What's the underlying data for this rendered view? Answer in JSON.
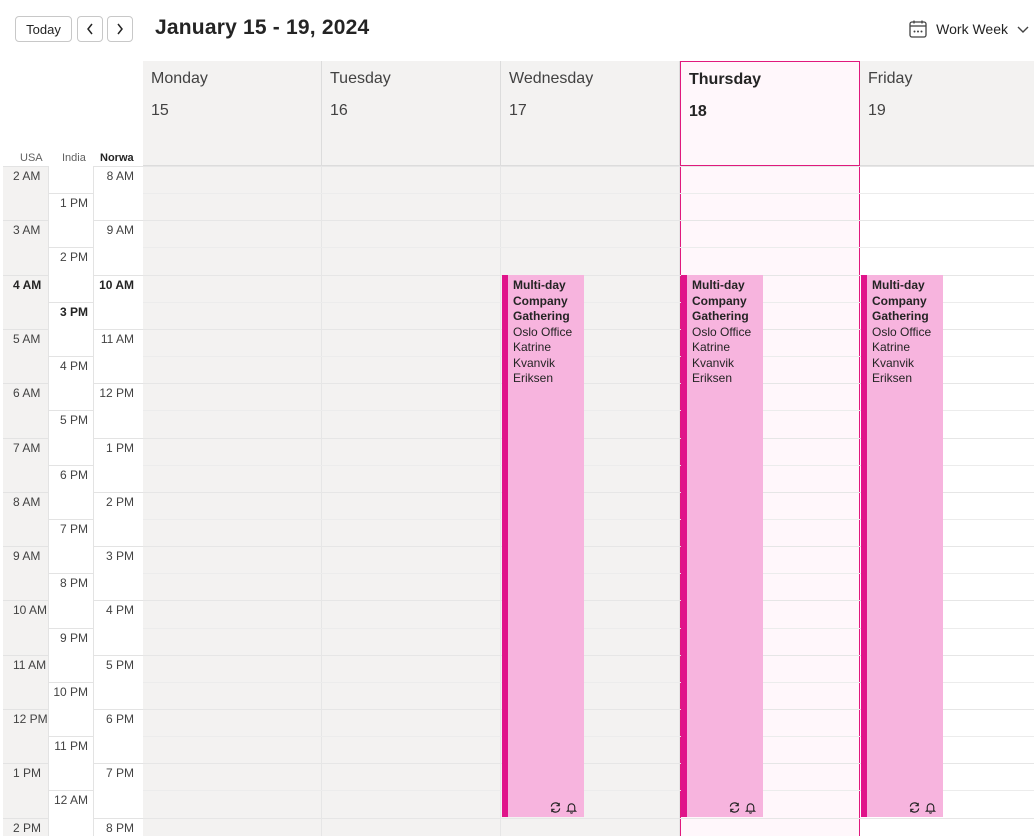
{
  "toolbar": {
    "today_label": "Today",
    "date_range": "January 15 - 19, 2024",
    "view_label": "Work Week"
  },
  "timezones": {
    "usa": "USA",
    "india": "India",
    "norway": "Norwa"
  },
  "days": [
    {
      "name": "Monday",
      "number": "15"
    },
    {
      "name": "Tuesday",
      "number": "16"
    },
    {
      "name": "Wednesday",
      "number": "17"
    },
    {
      "name": "Thursday",
      "number": "18"
    },
    {
      "name": "Friday",
      "number": "19"
    }
  ],
  "time_labels": {
    "usa": [
      "2 AM",
      "3 AM",
      "4 AM",
      "5 AM",
      "6 AM",
      "7 AM",
      "8 AM",
      "9 AM",
      "10 AM",
      "11 AM",
      "12 PM",
      "1 PM",
      "2 PM"
    ],
    "india": [
      "1 PM",
      "2 PM",
      "3 PM",
      "4 PM",
      "5 PM",
      "6 PM",
      "7 PM",
      "8 PM",
      "9 PM",
      "10 PM",
      "11 PM",
      "12 AM"
    ],
    "norway": [
      "8 AM",
      "9 AM",
      "10 AM",
      "11 AM",
      "12 PM",
      "1 PM",
      "2 PM",
      "3 PM",
      "4 PM",
      "5 PM",
      "6 PM",
      "7 PM",
      "8 PM"
    ]
  },
  "event": {
    "title": "Multi-day Company Gathering",
    "location": "Oslo Office",
    "organizer": "Katrine Kvanvik Eriksen"
  },
  "colors": {
    "accent": "#e0197d",
    "event_fill": "#f7b4de",
    "event_bar": "#e0148a"
  }
}
